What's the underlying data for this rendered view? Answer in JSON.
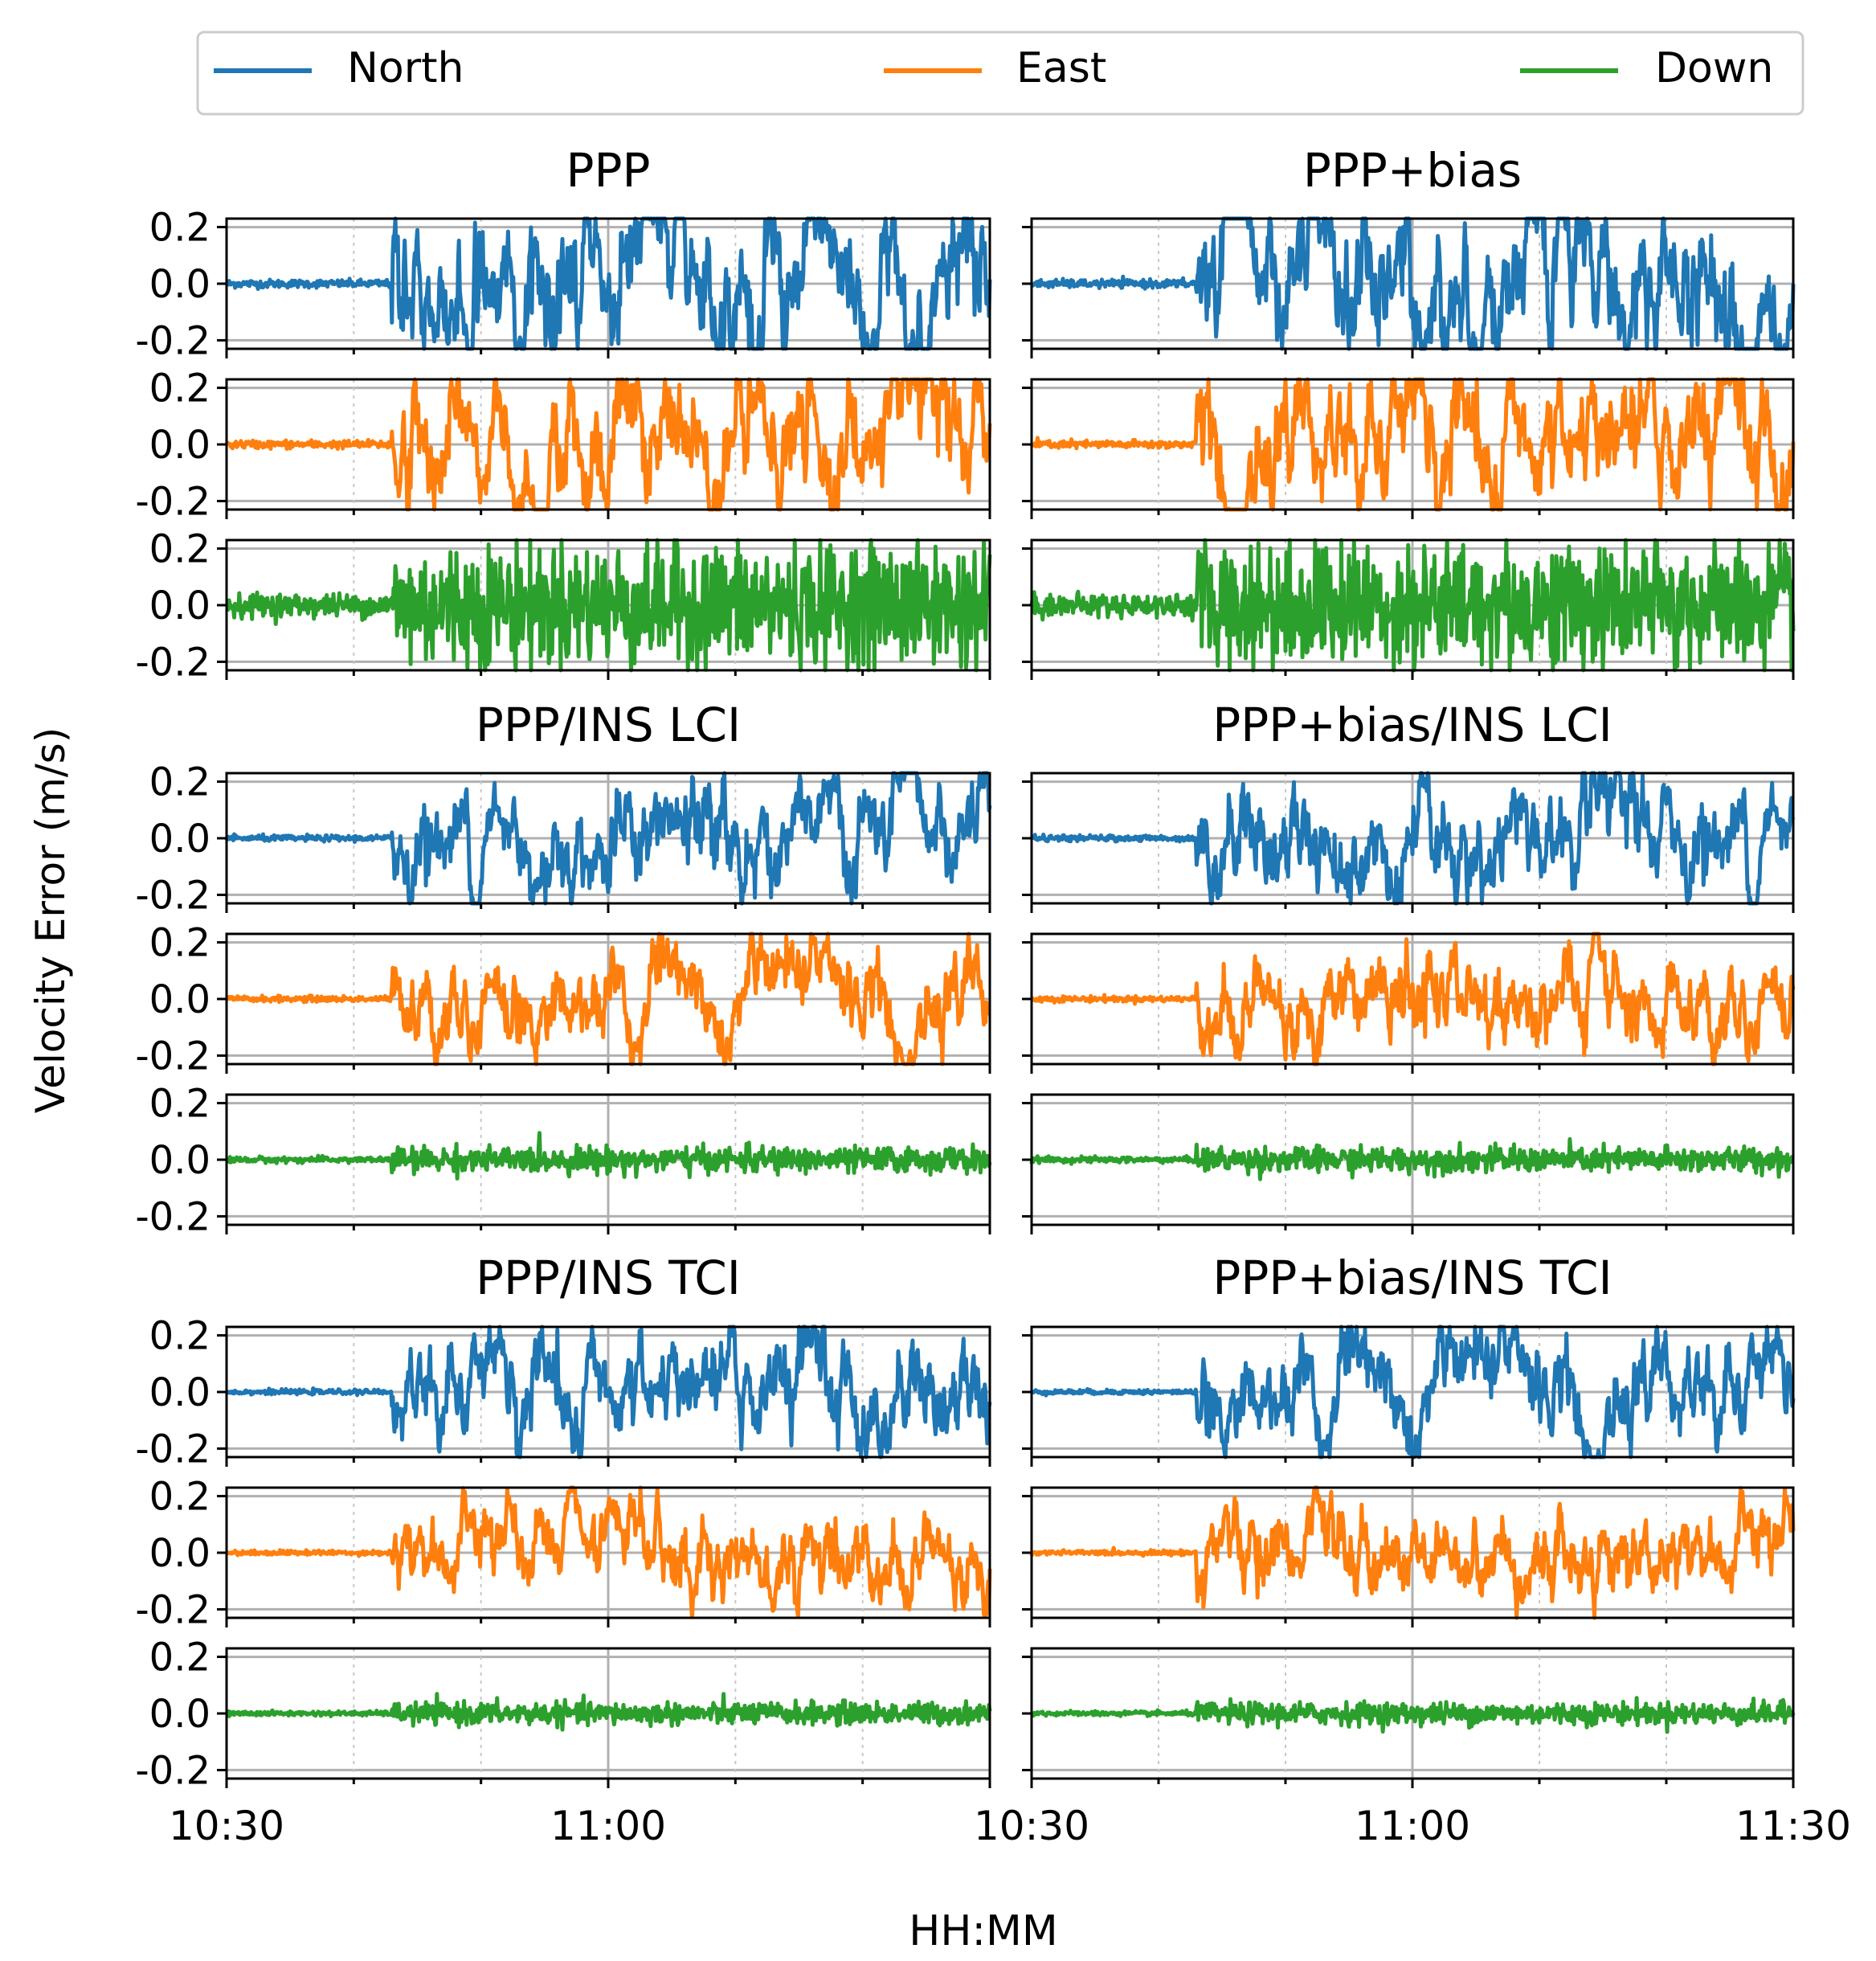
{
  "legend": {
    "entries": [
      {
        "label": "North",
        "color": "#1f77b4"
      },
      {
        "label": "East",
        "color": "#ff7f0e"
      },
      {
        "label": "Down",
        "color": "#2ca02c"
      }
    ]
  },
  "axes": {
    "ylabel": "Velocity Error (m/s)",
    "xlabel": "HH:MM",
    "yticks": [
      "0.2",
      "0.0",
      "-0.2"
    ],
    "xticks_left": [
      "10:30",
      "11:00"
    ],
    "xticks_right": [
      "10:30",
      "11:00",
      "11:30"
    ]
  },
  "chart_data": {
    "type": "line",
    "x_range": [
      "10:30",
      "11:30"
    ],
    "x_minutes_range": [
      0,
      60
    ],
    "ylim": [
      -0.23,
      0.23
    ],
    "yticks": [
      -0.2,
      0.0,
      0.2
    ],
    "grid": true,
    "components": [
      "North",
      "East",
      "Down"
    ],
    "panels": [
      {
        "title": "PPP",
        "pre_activity_std": [
          0.007,
          0.007,
          0.02
        ],
        "activity_amplitude": [
          0.3,
          0.25,
          0.2
        ],
        "activity_start_min": 13
      },
      {
        "title": "PPP+bias",
        "pre_activity_std": [
          0.007,
          0.007,
          0.02
        ],
        "activity_amplitude": [
          0.3,
          0.25,
          0.2
        ],
        "activity_start_min": 13
      },
      {
        "title": "PPP/INS LCI",
        "pre_activity_std": [
          0.005,
          0.005,
          0.005
        ],
        "activity_amplitude": [
          0.2,
          0.17,
          0.04
        ],
        "activity_start_min": 13
      },
      {
        "title": "PPP+bias/INS LCI",
        "pre_activity_std": [
          0.005,
          0.005,
          0.005
        ],
        "activity_amplitude": [
          0.2,
          0.17,
          0.04
        ],
        "activity_start_min": 13
      },
      {
        "title": "PPP/INS TCI",
        "pre_activity_std": [
          0.004,
          0.004,
          0.004
        ],
        "activity_amplitude": [
          0.19,
          0.16,
          0.035
        ],
        "activity_start_min": 13
      },
      {
        "title": "PPP+bias/INS TCI",
        "pre_activity_std": [
          0.004,
          0.004,
          0.004
        ],
        "activity_amplitude": [
          0.19,
          0.16,
          0.035
        ],
        "activity_start_min": 13
      }
    ]
  }
}
